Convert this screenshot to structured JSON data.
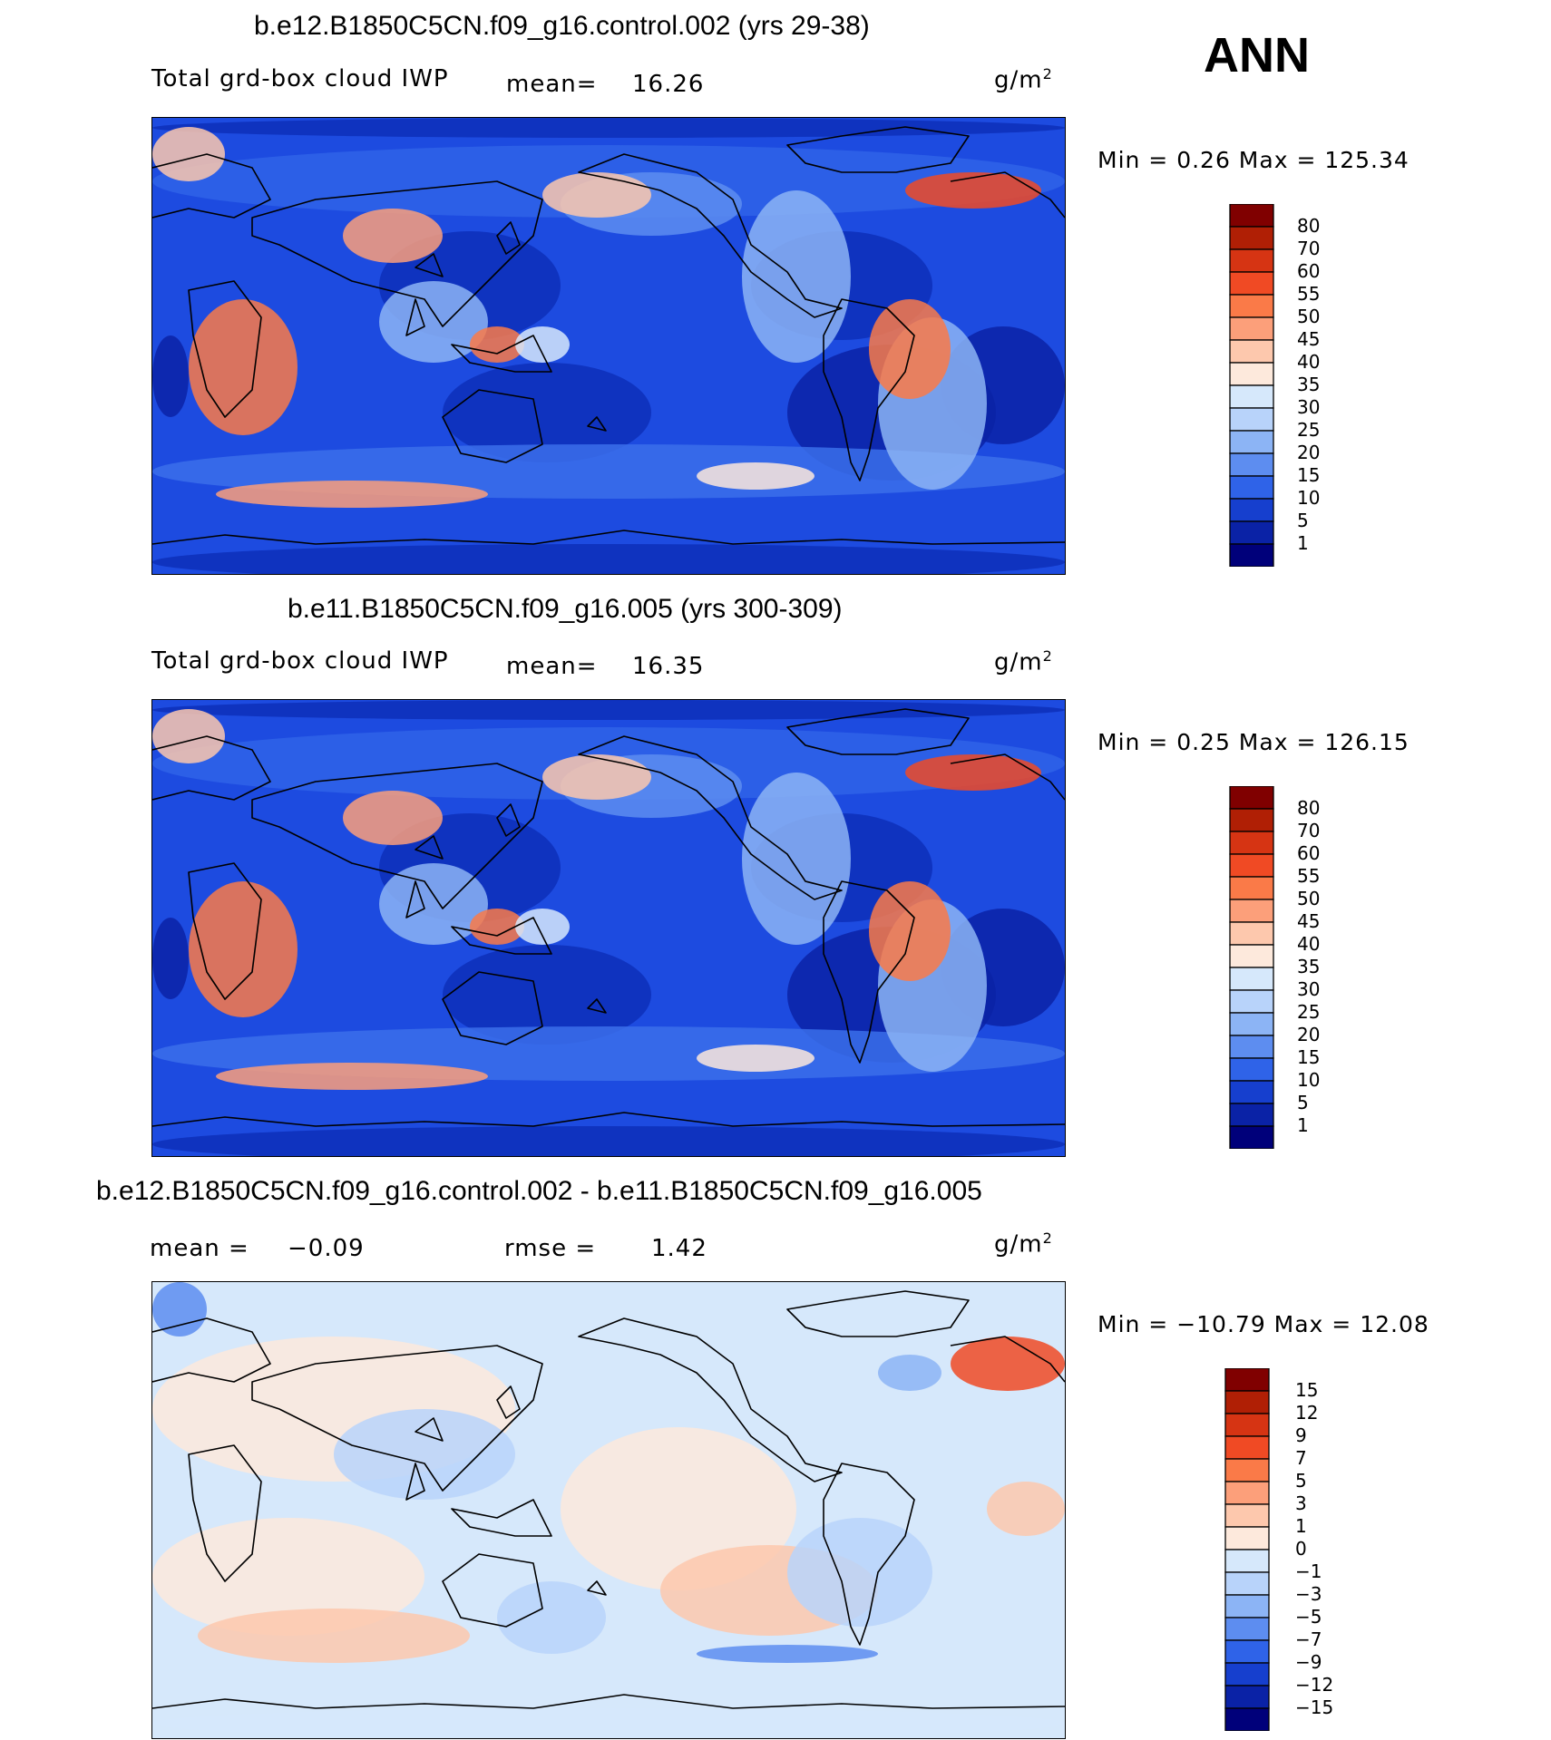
{
  "season": "ANN",
  "units_base": "g/m",
  "units_sup": "2",
  "panels": [
    {
      "title": "b.e12.B1850C5CN.f09_g16.control.002 (yrs 29-38)",
      "variable": "Total grd-box cloud IWP",
      "mean_label": "mean=",
      "mean": "16.26",
      "minmax": "Min =    0.26  Max  =  125.34",
      "colorbar_levels": [
        "80",
        "70",
        "60",
        "55",
        "50",
        "45",
        "40",
        "35",
        "30",
        "25",
        "20",
        "15",
        "10",
        "5",
        "1"
      ],
      "colorbar_colors": [
        "#800000",
        "#b01f05",
        "#d63413",
        "#f04a24",
        "#fa7a48",
        "#fc9f7a",
        "#fdc8ad",
        "#fde9dc",
        "#d6e8fb",
        "#b8d3fa",
        "#8cb4f5",
        "#5d8df0",
        "#2f63e8",
        "#163fce",
        "#0a22a6",
        "#00007a"
      ],
      "map_kind": "field"
    },
    {
      "title": "b.e11.B1850C5CN.f09_g16.005 (yrs 300-309)",
      "variable": "Total grd-box cloud IWP",
      "mean_label": "mean=",
      "mean": "16.35",
      "minmax": "Min =    0.25  Max  =  126.15",
      "colorbar_levels": [
        "80",
        "70",
        "60",
        "55",
        "50",
        "45",
        "40",
        "35",
        "30",
        "25",
        "20",
        "15",
        "10",
        "5",
        "1"
      ],
      "colorbar_colors": [
        "#800000",
        "#b01f05",
        "#d63413",
        "#f04a24",
        "#fa7a48",
        "#fc9f7a",
        "#fdc8ad",
        "#fde9dc",
        "#d6e8fb",
        "#b8d3fa",
        "#8cb4f5",
        "#5d8df0",
        "#2f63e8",
        "#163fce",
        "#0a22a6",
        "#00007a"
      ],
      "map_kind": "field"
    },
    {
      "title": "b.e12.B1850C5CN.f09_g16.control.002 - b.e11.B1850C5CN.f09_g16.005",
      "mean_label": "mean =",
      "mean": "−0.09",
      "rmse_label": "rmse =",
      "rmse": "1.42",
      "minmax": "Min  =  −10.79  Max  =    12.08",
      "colorbar_levels": [
        "15",
        "12",
        "9",
        "7",
        "5",
        "3",
        "1",
        "0",
        "−1",
        "−3",
        "−5",
        "−7",
        "−9",
        "−12",
        "−15"
      ],
      "colorbar_colors": [
        "#800000",
        "#b01f05",
        "#d63413",
        "#f04a24",
        "#fa7a48",
        "#fc9f7a",
        "#fdc8ad",
        "#fde9dc",
        "#d6e8fb",
        "#b8d3fa",
        "#8cb4f5",
        "#5d8df0",
        "#2f63e8",
        "#163fce",
        "#0a22a6",
        "#00007a"
      ],
      "map_kind": "diff"
    }
  ]
}
